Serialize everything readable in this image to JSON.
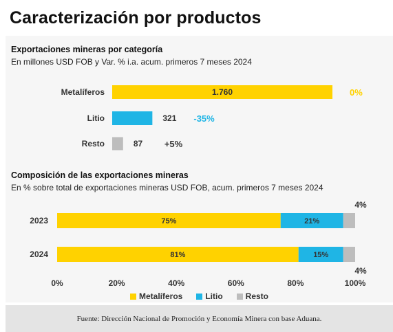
{
  "page_title": "Caracterización por productos",
  "footer": "Fuente: Dirección Nacional de Promoción y Economía Minera con base Aduana.",
  "colors": {
    "metaliferos": "#FFD200",
    "litio": "#1FB5E5",
    "resto": "#BDBDBD",
    "panel": "#f6f6f6"
  },
  "chart_data": [
    {
      "type": "bar",
      "orientation": "horizontal",
      "title": "Exportaciones mineras por categoría",
      "subtitle": "En millones USD FOB y Var. % i.a. acum. primeros 7 meses 2024",
      "categories": [
        "Metalíferos",
        "Litio",
        "Resto"
      ],
      "values": [
        1760,
        321,
        87
      ],
      "value_labels": [
        "1.760",
        "321",
        "87"
      ],
      "changes": [
        "0%",
        "-35%",
        "+5%"
      ],
      "colors": [
        "#FFD200",
        "#1FB5E5",
        "#BDBDBD"
      ],
      "change_colors": [
        "#FFD200",
        "#1FB5E5",
        "#333333"
      ],
      "grid": false
    },
    {
      "type": "bar",
      "orientation": "horizontal",
      "stacked": true,
      "title": "Composición de las exportaciones mineras",
      "subtitle": "En % sobre total de exportaciones mineras USD FOB, acum. primeros 7 meses 2024",
      "categories": [
        "2023",
        "2024"
      ],
      "series": [
        {
          "name": "Metalíferos",
          "values": [
            75,
            81
          ],
          "labels": [
            "75%",
            "81%"
          ],
          "color": "#FFD200"
        },
        {
          "name": "Litio",
          "values": [
            21,
            15
          ],
          "labels": [
            "21%",
            "15%"
          ],
          "color": "#1FB5E5"
        },
        {
          "name": "Resto",
          "values": [
            4,
            4
          ],
          "labels": [
            "4%",
            "4%"
          ],
          "color": "#BDBDBD"
        }
      ],
      "xlim": [
        0,
        100
      ],
      "xticks": [
        "0%",
        "20%",
        "40%",
        "60%",
        "80%",
        "100%"
      ],
      "legend": "bottom-center",
      "grid": false
    }
  ]
}
